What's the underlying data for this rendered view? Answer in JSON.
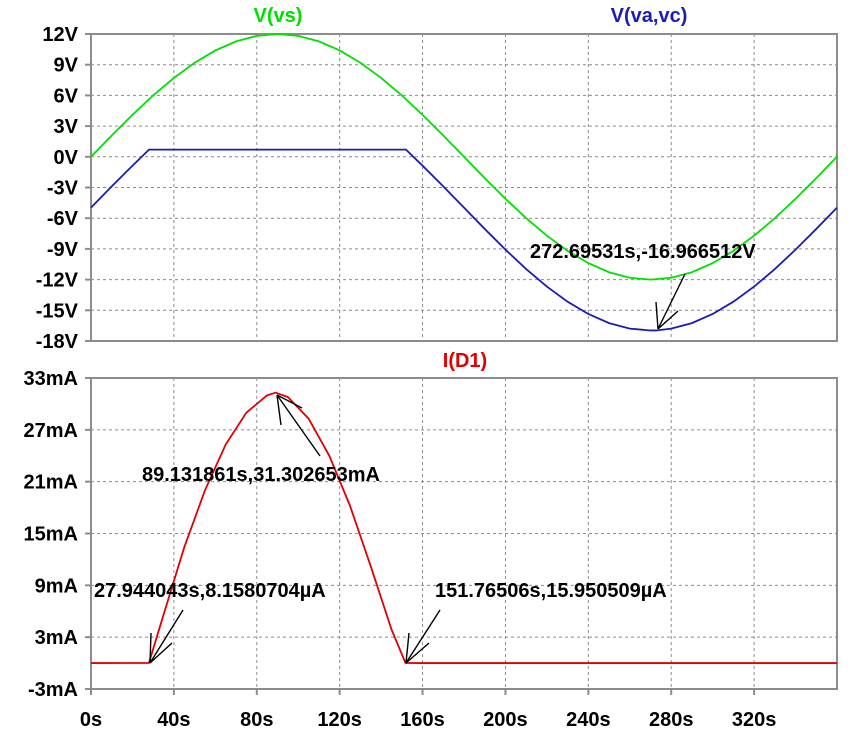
{
  "chart_data": [
    {
      "type": "line",
      "panel": "top",
      "traces": [
        {
          "label": "V(vs)",
          "color": "#00e000"
        },
        {
          "label": "V(va,vc)",
          "color": "#1c1cb8"
        }
      ],
      "yticks": [
        "12V",
        "9V",
        "6V",
        "3V",
        "0V",
        "-3V",
        "-6V",
        "-9V",
        "-12V",
        "-15V",
        "-18V"
      ],
      "ylim": [
        -18,
        12
      ],
      "xlim": [
        0,
        360
      ],
      "grid": true,
      "series": [
        {
          "name": "V(vs)",
          "color": "#00e000",
          "x": [
            0,
            10,
            20,
            30,
            40,
            50,
            60,
            70,
            80,
            90,
            100,
            110,
            120,
            130,
            140,
            150,
            160,
            170,
            180,
            190,
            200,
            210,
            220,
            230,
            240,
            250,
            260,
            270,
            280,
            290,
            300,
            310,
            320,
            330,
            340,
            350,
            360
          ],
          "values": [
            0,
            2.08,
            4.1,
            6.0,
            7.71,
            9.19,
            10.39,
            11.28,
            11.82,
            12.0,
            11.82,
            11.28,
            10.39,
            9.19,
            7.71,
            6.0,
            4.1,
            2.08,
            0,
            -2.08,
            -4.1,
            -6.0,
            -7.71,
            -9.19,
            -10.39,
            -11.28,
            -11.82,
            -12.0,
            -11.82,
            -11.28,
            -10.39,
            -9.19,
            -7.71,
            -6.0,
            -4.1,
            -2.08,
            0
          ]
        },
        {
          "name": "V(va,vc)",
          "color": "#1c1cb8",
          "x": [
            0,
            10,
            20,
            28,
            30,
            40,
            60,
            80,
            100,
            120,
            140,
            150,
            152,
            160,
            170,
            180,
            190,
            200,
            210,
            220,
            230,
            240,
            250,
            260,
            270,
            272.7,
            280,
            290,
            300,
            310,
            320,
            330,
            340,
            350,
            360
          ],
          "values": [
            -4.97,
            -2.89,
            -0.87,
            0.7,
            0.7,
            0.7,
            0.7,
            0.7,
            0.7,
            0.7,
            0.7,
            0.7,
            0.7,
            -0.87,
            -2.89,
            -4.97,
            -7.05,
            -9.07,
            -10.97,
            -12.68,
            -14.16,
            -15.36,
            -16.25,
            -16.79,
            -16.97,
            -16.97,
            -16.79,
            -16.25,
            -15.36,
            -14.16,
            -12.68,
            -10.97,
            -9.07,
            -7.05,
            -4.97
          ]
        }
      ],
      "annotations": [
        {
          "text": "272.69531s,-16.966512V",
          "x": 272.69531,
          "y": -16.966512
        }
      ]
    },
    {
      "type": "line",
      "panel": "bottom",
      "traces": [
        {
          "label": "I(D1)",
          "color": "#e00000"
        }
      ],
      "yticks": [
        "33mA",
        "27mA",
        "21mA",
        "15mA",
        "9mA",
        "3mA",
        "-3mA"
      ],
      "ylim": [
        -3,
        33
      ],
      "xlim": [
        0,
        360
      ],
      "xticks": [
        "0s",
        "40s",
        "80s",
        "120s",
        "160s",
        "200s",
        "240s",
        "280s",
        "320s"
      ],
      "xtick_values": [
        0,
        40,
        80,
        120,
        160,
        200,
        240,
        280,
        320
      ],
      "grid": true,
      "series": [
        {
          "name": "I(D1)",
          "color": "#e00000",
          "x": [
            0,
            27.94,
            35,
            45,
            55,
            65,
            75,
            85,
            89.13,
            95,
            105,
            115,
            125,
            135,
            145,
            151.77,
            160,
            200,
            240,
            280,
            320,
            360
          ],
          "values": [
            0,
            0.008,
            5.6,
            13.4,
            20.0,
            25.3,
            29.0,
            31.0,
            31.3,
            30.8,
            28.3,
            24.0,
            18.2,
            11.2,
            3.9,
            0.016,
            0,
            0,
            0,
            0,
            0,
            0
          ]
        }
      ],
      "annotations": [
        {
          "text": "89.131861s,31.302653mA",
          "x": 89.131861,
          "y": 31.302653
        },
        {
          "text": "27.944043s,8.1580704µA",
          "x": 27.944043,
          "y": 0.0081580704
        },
        {
          "text": "151.76506s,15.950509µA",
          "x": 151.76506,
          "y": 0.015950509
        }
      ]
    }
  ]
}
